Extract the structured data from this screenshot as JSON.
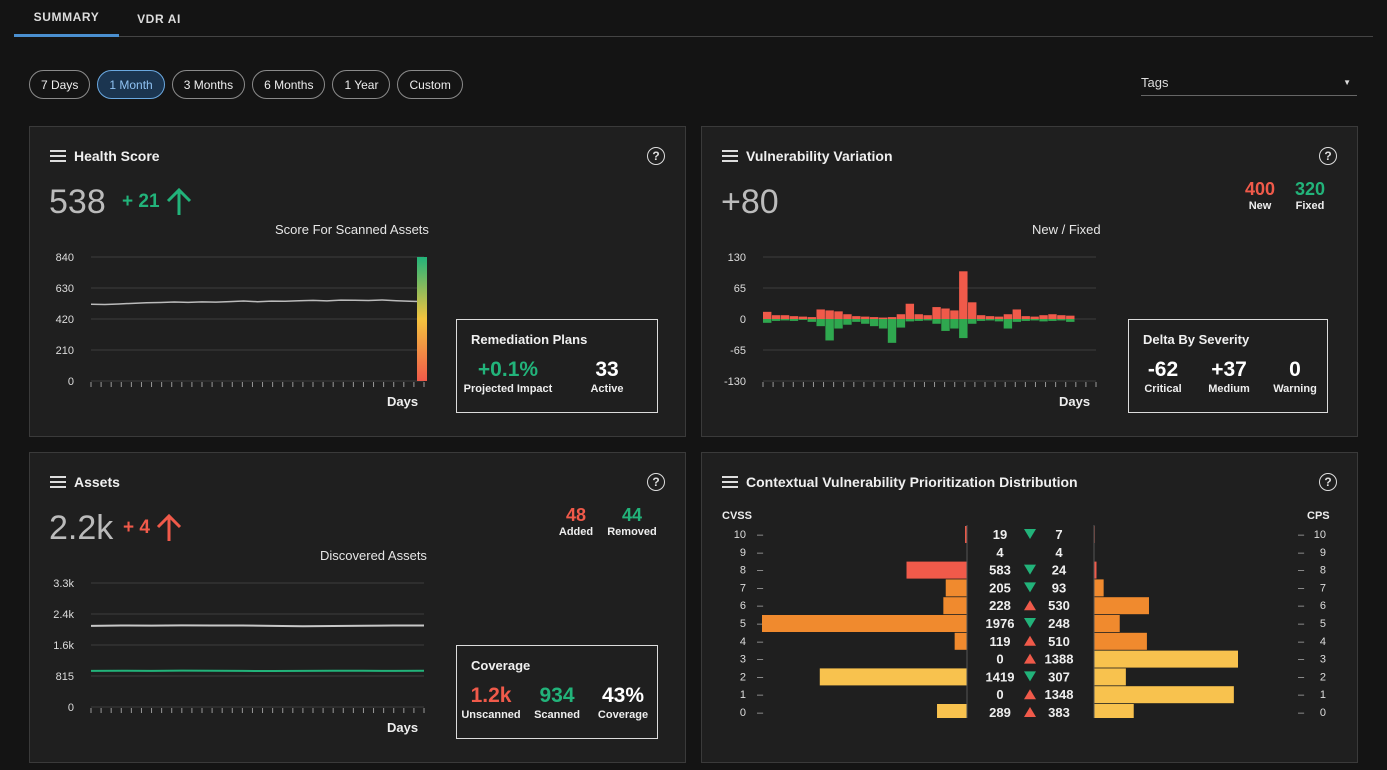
{
  "tabs": [
    {
      "label": "SUMMARY"
    },
    {
      "label": "VDR AI"
    }
  ],
  "time_filters": [
    "7 Days",
    "1 Month",
    "3 Months",
    "6 Months",
    "1 Year",
    "Custom"
  ],
  "active_filter": "1 Month",
  "tags": {
    "label": "Tags"
  },
  "health": {
    "title": "Health Score",
    "value": "538",
    "delta": "+ 21",
    "caption": "Score For Scanned Assets",
    "xlabel": "Days",
    "remediation": {
      "title": "Remediation Plans",
      "impact": "+0.1%",
      "impact_label": "Projected Impact",
      "active": "33",
      "active_label": "Active"
    }
  },
  "variation": {
    "title": "Vulnerability Variation",
    "value": "+80",
    "new": "400",
    "new_label": "New",
    "fixed": "320",
    "fixed_label": "Fixed",
    "caption": "New / Fixed",
    "xlabel": "Days",
    "severity": {
      "title": "Delta By Severity",
      "items": [
        {
          "v": "-62",
          "l": "Critical"
        },
        {
          "v": "+37",
          "l": "Medium"
        },
        {
          "v": "0",
          "l": "Warning"
        }
      ]
    }
  },
  "assets": {
    "title": "Assets",
    "value": "2.2k",
    "delta": "+ 4",
    "added": "48",
    "added_label": "Added",
    "removed": "44",
    "removed_label": "Removed",
    "caption": "Discovered Assets",
    "xlabel": "Days",
    "coverage": {
      "title": "Coverage",
      "items": [
        {
          "v": "1.2k",
          "l": "Unscanned",
          "c": "#f05a4a"
        },
        {
          "v": "934",
          "l": "Scanned",
          "c": "#22b37a"
        },
        {
          "v": "43%",
          "l": "Coverage",
          "c": "#ffffff"
        }
      ]
    }
  },
  "cvpd": {
    "title": "Contextual Vulnerability Prioritization Distribution",
    "left_label": "CVSS",
    "right_label": "CPS"
  },
  "chart_data": [
    {
      "type": "line",
      "title": "Score For Scanned Assets",
      "xlabel": "Days",
      "ylim": [
        0,
        840
      ],
      "yticks": [
        840,
        630,
        420,
        210,
        0
      ],
      "series": [
        {
          "values": [
            520,
            518,
            522,
            526,
            530,
            532,
            535,
            533,
            536,
            534,
            538,
            542,
            537,
            541,
            540,
            544,
            546,
            543,
            548,
            547,
            545,
            549,
            544,
            540,
            538
          ]
        }
      ]
    },
    {
      "type": "bar",
      "title": "New / Fixed",
      "xlabel": "Days",
      "ylim": [
        -130,
        130
      ],
      "yticks": [
        130,
        65,
        0,
        -65,
        -130
      ],
      "series": [
        {
          "name": "New",
          "color": "#f05a4a",
          "values": [
            15,
            8,
            8,
            6,
            5,
            4,
            20,
            18,
            16,
            10,
            6,
            5,
            4,
            3,
            4,
            10,
            32,
            10,
            8,
            25,
            22,
            18,
            100,
            35,
            8,
            6,
            5,
            10,
            20,
            6,
            5,
            8,
            10,
            8,
            7
          ]
        },
        {
          "name": "Fixed",
          "color": "#2fa84f",
          "values": [
            -8,
            -4,
            -3,
            -4,
            -2,
            -6,
            -15,
            -45,
            -20,
            -12,
            -6,
            -10,
            -15,
            -20,
            -50,
            -18,
            -5,
            -4,
            -3,
            -10,
            -25,
            -20,
            -40,
            -10,
            -4,
            -3,
            -5,
            -20,
            -6,
            -4,
            -3,
            -5,
            -4,
            -3,
            -6
          ]
        }
      ]
    },
    {
      "type": "line",
      "title": "Discovered Assets",
      "xlabel": "Days",
      "ylim": [
        0,
        3300
      ],
      "yticks": [
        "3.3k",
        "2.4k",
        "1.6k",
        "815",
        "0"
      ],
      "series": [
        {
          "name": "Total",
          "color": "#c8c8c8",
          "values": [
            2160,
            2170,
            2165,
            2172,
            2168,
            2170,
            2160,
            2150,
            2155,
            2162,
            2168,
            2170
          ]
        },
        {
          "name": "Scanned",
          "color": "#22b37a",
          "values": [
            960,
            965,
            962,
            968,
            964,
            960,
            958,
            962,
            966,
            964,
            962,
            965
          ]
        }
      ]
    },
    {
      "type": "bar",
      "title": "Contextual Vulnerability Prioritization Distribution",
      "categories": [
        "10",
        "9",
        "8",
        "7",
        "6",
        "5",
        "4",
        "3",
        "2",
        "1",
        "0"
      ],
      "series": [
        {
          "name": "CVSS",
          "values": [
            19,
            4,
            583,
            205,
            228,
            1976,
            119,
            0,
            1419,
            0,
            289
          ]
        },
        {
          "name": "CPS",
          "values": [
            7,
            4,
            24,
            93,
            530,
            248,
            510,
            1388,
            307,
            1348,
            383
          ]
        }
      ],
      "trend": [
        "down",
        "none",
        "down",
        "down",
        "up",
        "down",
        "up",
        "up",
        "down",
        "up",
        "up"
      ]
    }
  ]
}
